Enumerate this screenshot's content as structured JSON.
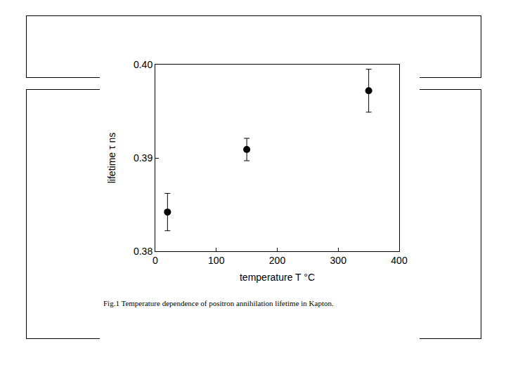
{
  "chart_data": {
    "type": "scatter",
    "x_label": "temperature T °C",
    "y_label": "lifetime τ ns",
    "caption": "Fig.1 Temperature dependence of positron annihilation lifetime in Kapton.",
    "x": [
      20,
      150,
      350
    ],
    "values": [
      0.3842,
      0.3909,
      0.3972
    ],
    "errors": [
      0.002,
      0.0012,
      0.0023
    ],
    "color": "#000000",
    "marker": "circle",
    "xlim": [
      0,
      400
    ],
    "xticks": [
      0,
      100,
      200,
      300,
      400
    ],
    "ylim": [
      0.38,
      0.4
    ],
    "yticks": [
      0.38,
      0.39,
      {
        "value": 0.4,
        "label": "0.40"
      }
    ],
    "grid": false
  }
}
